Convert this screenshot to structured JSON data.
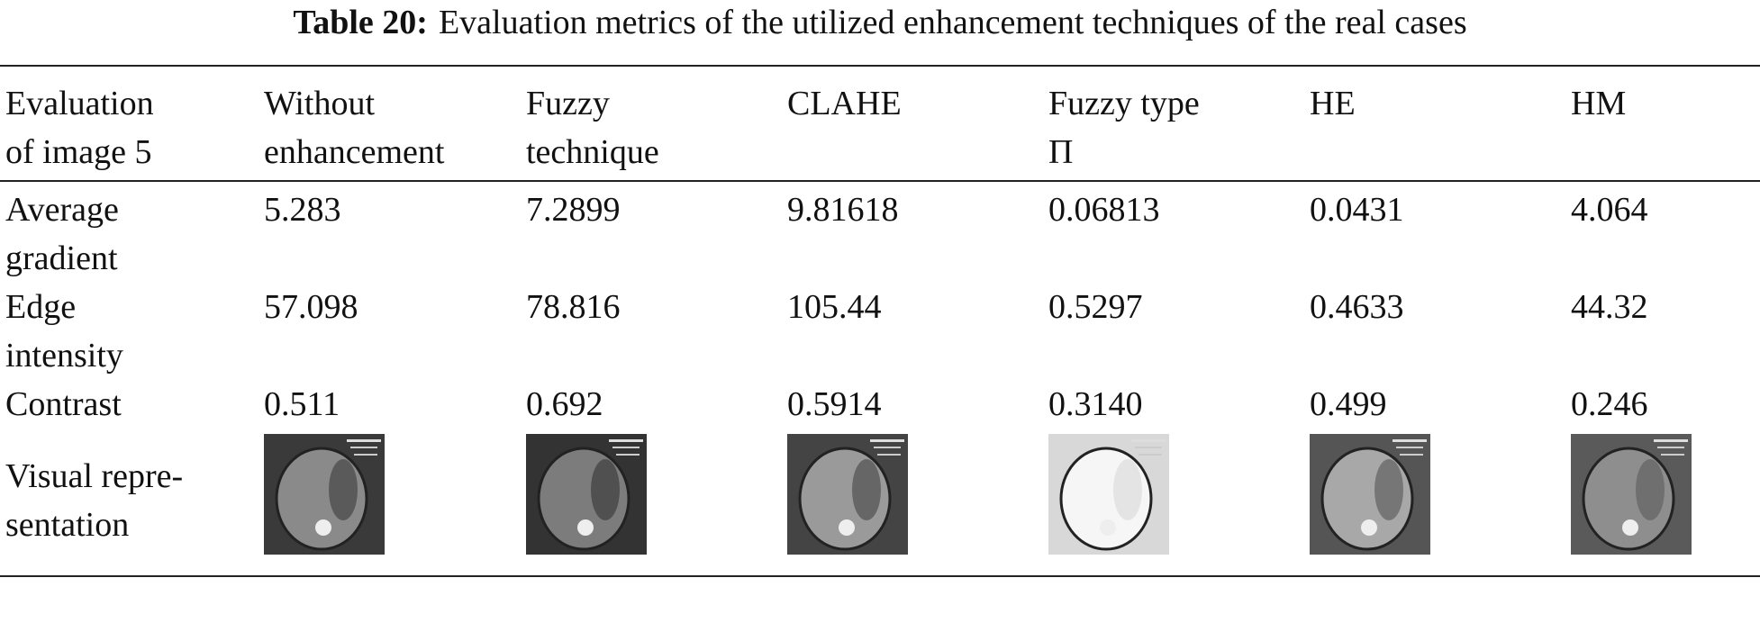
{
  "caption": {
    "label": "Table 20:",
    "text": "Evaluation metrics of the utilized enhancement techniques of the real cases"
  },
  "table": {
    "header": [
      "Evaluation\nof image 5",
      "Without\nenhancement",
      "Fuzzy\ntechnique",
      "CLAHE",
      "Fuzzy type\nΠ",
      "HE",
      "HM"
    ],
    "rows": [
      [
        "Average\ngradient",
        "5.283",
        "7.2899",
        "9.81618",
        "0.06813",
        "0.0431",
        "4.064"
      ],
      [
        "Edge\nintensity",
        "57.098",
        "78.816",
        "105.44",
        "0.5297",
        "0.4633",
        "44.32"
      ],
      [
        "Contrast",
        "0.511",
        "0.692",
        "0.5914",
        "0.3140",
        "0.499",
        "0.246"
      ],
      [
        "Visual repre-\nsentation"
      ]
    ]
  }
}
